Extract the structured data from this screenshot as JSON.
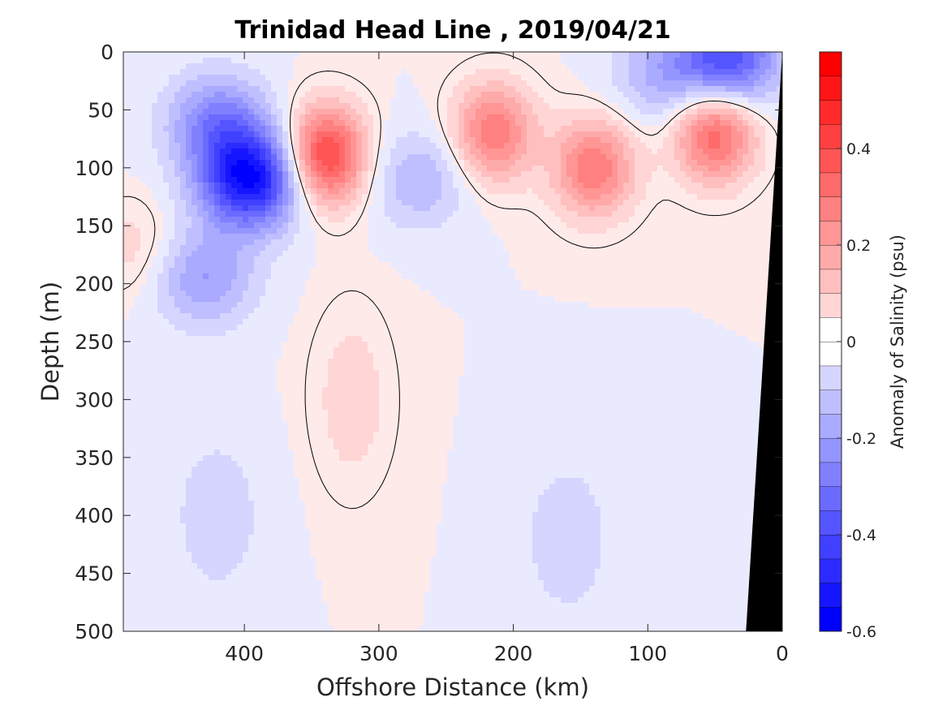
{
  "chart_data": {
    "type": "heatmap",
    "title": "Trinidad Head Line , 2019/04/21",
    "xlabel": "Offshore Distance (km)",
    "ylabel": "Depth (m)",
    "xlim": [
      490,
      0
    ],
    "ylim": [
      500,
      0
    ],
    "x_reversed": true,
    "y_reversed": true,
    "x_ticks": [
      400,
      300,
      200,
      100,
      0
    ],
    "x_tick_labels": [
      "400",
      "300",
      "200",
      "100",
      "0"
    ],
    "y_ticks": [
      0,
      50,
      100,
      150,
      200,
      250,
      300,
      350,
      400,
      450,
      500
    ],
    "y_tick_labels": [
      "0",
      "50",
      "100",
      "150",
      "200",
      "250",
      "300",
      "350",
      "400",
      "450",
      "500"
    ],
    "contour_line_level": 0,
    "colorbar": {
      "label": "Anomaly of Salinity (psu)",
      "range": [
        -0.6,
        0.6
      ],
      "levels": [
        -0.6,
        -0.55,
        -0.5,
        -0.45,
        -0.4,
        -0.35,
        -0.3,
        -0.25,
        -0.2,
        -0.15,
        -0.1,
        -0.05,
        0,
        0.05,
        0.1,
        0.15,
        0.2,
        0.25,
        0.3,
        0.35,
        0.4,
        0.45,
        0.5,
        0.55,
        0.6
      ],
      "ticks": [
        -0.6,
        -0.4,
        -0.2,
        0,
        0.2,
        0.4
      ],
      "tick_labels": [
        "-0.6",
        "-0.4",
        "-0.2",
        "0",
        "0.2",
        "0.4"
      ],
      "colormap": "blue-white-red",
      "min_color": "#0000ff",
      "mid_color": "#ffffff",
      "max_color": "#ff0000"
    },
    "features": [
      {
        "kind": "negative",
        "x_km": 395,
        "depth_m": 110,
        "anomaly_psu": -0.55
      },
      {
        "kind": "negative",
        "x_km": 420,
        "depth_m": 60,
        "anomaly_psu": -0.25
      },
      {
        "kind": "negative",
        "x_km": 430,
        "depth_m": 195,
        "anomaly_psu": -0.2
      },
      {
        "kind": "negative",
        "x_km": 270,
        "depth_m": 110,
        "anomaly_psu": -0.15
      },
      {
        "kind": "negative",
        "x_km": 40,
        "depth_m": 5,
        "anomaly_psu": -0.4
      },
      {
        "kind": "negative",
        "x_km": 90,
        "depth_m": 20,
        "anomaly_psu": -0.15
      },
      {
        "kind": "negative",
        "x_km": 420,
        "depth_m": 400,
        "anomaly_psu": -0.08
      },
      {
        "kind": "negative",
        "x_km": 160,
        "depth_m": 420,
        "anomaly_psu": -0.08
      },
      {
        "kind": "positive",
        "x_km": 340,
        "depth_m": 90,
        "anomaly_psu": 0.45
      },
      {
        "kind": "positive",
        "x_km": 320,
        "depth_m": 300,
        "anomaly_psu": 0.08
      },
      {
        "kind": "positive",
        "x_km": 215,
        "depth_m": 70,
        "anomaly_psu": 0.3
      },
      {
        "kind": "positive",
        "x_km": 140,
        "depth_m": 100,
        "anomaly_psu": 0.3
      },
      {
        "kind": "positive",
        "x_km": 50,
        "depth_m": 70,
        "anomaly_psu": 0.35
      },
      {
        "kind": "positive",
        "x_km": 480,
        "depth_m": 170,
        "anomaly_psu": 0.08
      }
    ],
    "bathymetry": {
      "color": "#000000",
      "shelf_points_km_m": [
        [
          0,
          0
        ],
        [
          0,
          500
        ],
        [
          27,
          500
        ]
      ]
    }
  }
}
